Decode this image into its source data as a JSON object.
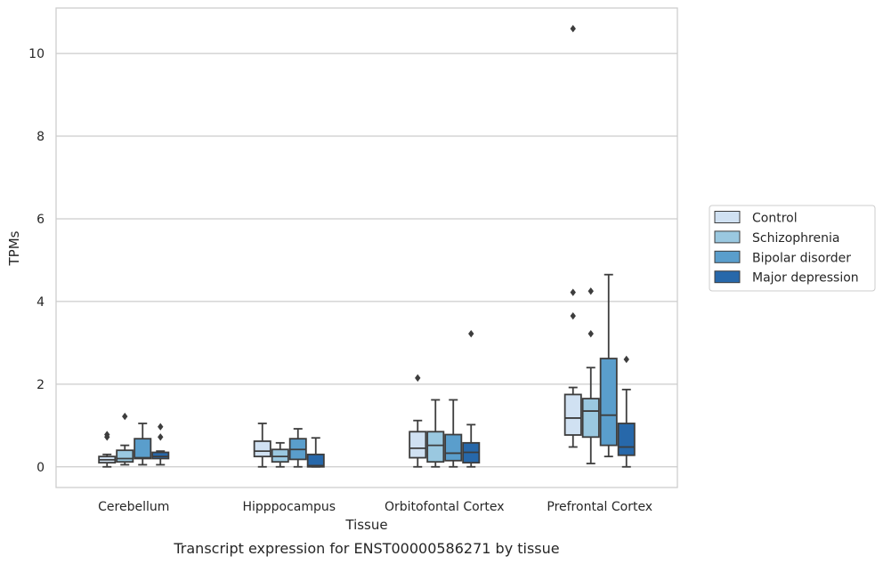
{
  "chart_data": {
    "type": "box",
    "title": "Transcript expression for ENST00000586271 by tissue",
    "xlabel": "Tissue",
    "ylabel": "TPMs",
    "ylim": [
      -0.5,
      11.1
    ],
    "yticks": [
      0,
      2,
      4,
      6,
      8,
      10
    ],
    "categories": [
      "Cerebellum",
      "Hipppocampus",
      "Orbitofontal Cortex",
      "Prefrontal Cortex"
    ],
    "grid": "horizontal",
    "legend_position": "right",
    "series": [
      {
        "name": "Control",
        "color": "#d0e1f2",
        "boxes": [
          {
            "whislo": 0.0,
            "q1": 0.1,
            "med": 0.17,
            "q3": 0.25,
            "whishi": 0.3,
            "fliers": [
              0.72,
              0.78
            ]
          },
          {
            "whislo": 0.0,
            "q1": 0.25,
            "med": 0.38,
            "q3": 0.62,
            "whishi": 1.05,
            "fliers": []
          },
          {
            "whislo": 0.0,
            "q1": 0.22,
            "med": 0.45,
            "q3": 0.85,
            "whishi": 1.12,
            "fliers": [
              2.15
            ]
          },
          {
            "whislo": 0.48,
            "q1": 0.77,
            "med": 1.18,
            "q3": 1.75,
            "whishi": 1.92,
            "fliers": [
              3.65,
              4.22,
              10.6
            ]
          }
        ]
      },
      {
        "name": "Schizophrenia",
        "color": "#9ac8e0",
        "boxes": [
          {
            "whislo": 0.05,
            "q1": 0.12,
            "med": 0.2,
            "q3": 0.4,
            "whishi": 0.52,
            "fliers": [
              1.22
            ]
          },
          {
            "whislo": 0.0,
            "q1": 0.12,
            "med": 0.25,
            "q3": 0.42,
            "whishi": 0.58,
            "fliers": []
          },
          {
            "whislo": 0.0,
            "q1": 0.12,
            "med": 0.52,
            "q3": 0.85,
            "whishi": 1.62,
            "fliers": []
          },
          {
            "whislo": 0.08,
            "q1": 0.72,
            "med": 1.35,
            "q3": 1.65,
            "whishi": 2.4,
            "fliers": [
              3.22,
              4.25
            ]
          }
        ]
      },
      {
        "name": "Bipolar disorder",
        "color": "#5a9ecc",
        "boxes": [
          {
            "whislo": 0.05,
            "q1": 0.2,
            "med": 0.22,
            "q3": 0.68,
            "whishi": 1.05,
            "fliers": []
          },
          {
            "whislo": 0.0,
            "q1": 0.18,
            "med": 0.42,
            "q3": 0.68,
            "whishi": 0.92,
            "fliers": []
          },
          {
            "whislo": 0.0,
            "q1": 0.15,
            "med": 0.33,
            "q3": 0.78,
            "whishi": 1.62,
            "fliers": []
          },
          {
            "whislo": 0.25,
            "q1": 0.52,
            "med": 1.25,
            "q3": 2.62,
            "whishi": 4.65,
            "fliers": []
          }
        ]
      },
      {
        "name": "Major depression",
        "color": "#2768aa",
        "boxes": [
          {
            "whislo": 0.05,
            "q1": 0.2,
            "med": 0.25,
            "q3": 0.35,
            "whishi": 0.38,
            "fliers": [
              0.72,
              0.97
            ]
          },
          {
            "whislo": 0.0,
            "q1": 0.0,
            "med": 0.03,
            "q3": 0.3,
            "whishi": 0.7,
            "fliers": []
          },
          {
            "whislo": 0.0,
            "q1": 0.1,
            "med": 0.35,
            "q3": 0.58,
            "whishi": 1.02,
            "fliers": [
              3.22
            ]
          },
          {
            "whislo": 0.0,
            "q1": 0.28,
            "med": 0.48,
            "q3": 1.05,
            "whishi": 1.87,
            "fliers": [
              2.6
            ]
          }
        ]
      }
    ]
  }
}
